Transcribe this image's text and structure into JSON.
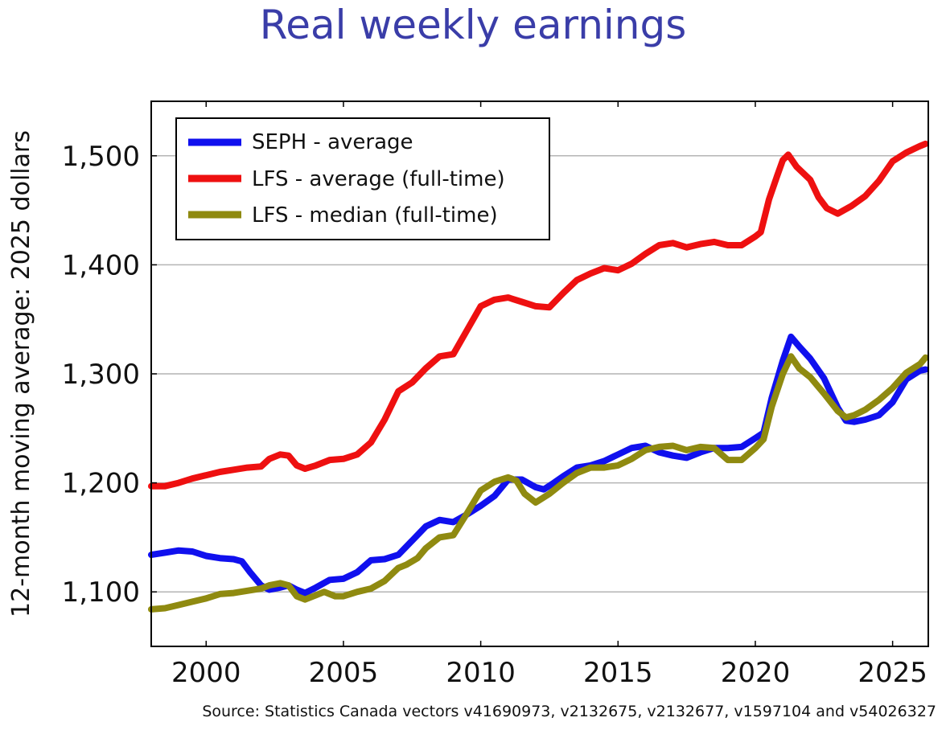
{
  "chart_data": {
    "type": "line",
    "title": "Real weekly earnings",
    "xlabel": "",
    "ylabel": "12-month moving average: 2025 dollars",
    "xlim": [
      1998,
      2026.3
    ],
    "ylim": [
      1050,
      1550
    ],
    "x_ticks": [
      2000,
      2005,
      2010,
      2015,
      2020,
      2025
    ],
    "x_tick_labels": [
      "2000",
      "2005",
      "2010",
      "2015",
      "2020",
      "2025"
    ],
    "y_ticks": [
      1100,
      1200,
      1300,
      1400,
      1500
    ],
    "y_tick_labels": [
      "1,100",
      "1,200",
      "1,300",
      "1,400",
      "1,500"
    ],
    "grid": "horizontal",
    "legend_position": "top-left",
    "source": "Source: Statistics Canada vectors v41690973, v2132675, v2132677, v1597104 and v54026327",
    "series": [
      {
        "name": "SEPH - average",
        "color": "#1010ee",
        "points": [
          [
            1998.0,
            1134
          ],
          [
            1998.5,
            1136
          ],
          [
            1999.0,
            1138
          ],
          [
            1999.5,
            1137
          ],
          [
            2000.0,
            1133
          ],
          [
            2000.5,
            1131
          ],
          [
            2001.0,
            1130
          ],
          [
            2001.3,
            1128
          ],
          [
            2001.6,
            1118
          ],
          [
            2002.0,
            1106
          ],
          [
            2002.3,
            1102
          ],
          [
            2002.7,
            1104
          ],
          [
            2003.0,
            1106
          ],
          [
            2003.3,
            1102
          ],
          [
            2003.6,
            1099
          ],
          [
            2004.0,
            1104
          ],
          [
            2004.5,
            1111
          ],
          [
            2005.0,
            1112
          ],
          [
            2005.5,
            1118
          ],
          [
            2006.0,
            1129
          ],
          [
            2006.5,
            1130
          ],
          [
            2007.0,
            1134
          ],
          [
            2007.5,
            1147
          ],
          [
            2008.0,
            1160
          ],
          [
            2008.5,
            1166
          ],
          [
            2009.0,
            1164
          ],
          [
            2009.5,
            1171
          ],
          [
            2010.0,
            1179
          ],
          [
            2010.5,
            1188
          ],
          [
            2011.0,
            1203
          ],
          [
            2011.5,
            1203
          ],
          [
            2012.0,
            1196
          ],
          [
            2012.3,
            1194
          ],
          [
            2012.6,
            1199
          ],
          [
            2013.0,
            1206
          ],
          [
            2013.5,
            1214
          ],
          [
            2014.0,
            1216
          ],
          [
            2014.5,
            1220
          ],
          [
            2015.0,
            1226
          ],
          [
            2015.5,
            1232
          ],
          [
            2016.0,
            1234
          ],
          [
            2016.5,
            1228
          ],
          [
            2017.0,
            1225
          ],
          [
            2017.5,
            1223
          ],
          [
            2018.0,
            1228
          ],
          [
            2018.5,
            1232
          ],
          [
            2019.0,
            1232
          ],
          [
            2019.5,
            1233
          ],
          [
            2020.0,
            1241
          ],
          [
            2020.3,
            1246
          ],
          [
            2020.6,
            1278
          ],
          [
            2021.0,
            1312
          ],
          [
            2021.3,
            1334
          ],
          [
            2021.6,
            1325
          ],
          [
            2022.0,
            1314
          ],
          [
            2022.5,
            1296
          ],
          [
            2023.0,
            1269
          ],
          [
            2023.3,
            1257
          ],
          [
            2023.6,
            1256
          ],
          [
            2024.0,
            1258
          ],
          [
            2024.5,
            1262
          ],
          [
            2025.0,
            1274
          ],
          [
            2025.5,
            1295
          ],
          [
            2026.0,
            1303
          ],
          [
            2026.2,
            1304
          ]
        ]
      },
      {
        "name": "LFS - average (full-time)",
        "color": "#ee1010",
        "points": [
          [
            1998.0,
            1197
          ],
          [
            1998.5,
            1197
          ],
          [
            1999.0,
            1200
          ],
          [
            1999.5,
            1204
          ],
          [
            2000.0,
            1207
          ],
          [
            2000.5,
            1210
          ],
          [
            2001.0,
            1212
          ],
          [
            2001.5,
            1214
          ],
          [
            2002.0,
            1215
          ],
          [
            2002.3,
            1222
          ],
          [
            2002.7,
            1226
          ],
          [
            2003.0,
            1225
          ],
          [
            2003.3,
            1216
          ],
          [
            2003.6,
            1213
          ],
          [
            2004.0,
            1216
          ],
          [
            2004.5,
            1221
          ],
          [
            2005.0,
            1222
          ],
          [
            2005.5,
            1226
          ],
          [
            2006.0,
            1237
          ],
          [
            2006.5,
            1258
          ],
          [
            2007.0,
            1284
          ],
          [
            2007.5,
            1292
          ],
          [
            2008.0,
            1305
          ],
          [
            2008.5,
            1316
          ],
          [
            2009.0,
            1318
          ],
          [
            2009.5,
            1340
          ],
          [
            2010.0,
            1362
          ],
          [
            2010.5,
            1368
          ],
          [
            2011.0,
            1370
          ],
          [
            2011.5,
            1366
          ],
          [
            2012.0,
            1362
          ],
          [
            2012.5,
            1361
          ],
          [
            2013.0,
            1374
          ],
          [
            2013.5,
            1386
          ],
          [
            2014.0,
            1392
          ],
          [
            2014.5,
            1397
          ],
          [
            2015.0,
            1395
          ],
          [
            2015.5,
            1401
          ],
          [
            2016.0,
            1410
          ],
          [
            2016.5,
            1418
          ],
          [
            2017.0,
            1420
          ],
          [
            2017.5,
            1416
          ],
          [
            2018.0,
            1419
          ],
          [
            2018.5,
            1421
          ],
          [
            2019.0,
            1418
          ],
          [
            2019.5,
            1418
          ],
          [
            2020.0,
            1426
          ],
          [
            2020.2,
            1430
          ],
          [
            2020.5,
            1460
          ],
          [
            2020.8,
            1482
          ],
          [
            2021.0,
            1496
          ],
          [
            2021.2,
            1501
          ],
          [
            2021.5,
            1490
          ],
          [
            2022.0,
            1478
          ],
          [
            2022.3,
            1462
          ],
          [
            2022.6,
            1452
          ],
          [
            2023.0,
            1447
          ],
          [
            2023.5,
            1454
          ],
          [
            2024.0,
            1463
          ],
          [
            2024.5,
            1477
          ],
          [
            2025.0,
            1495
          ],
          [
            2025.5,
            1503
          ],
          [
            2026.0,
            1509
          ],
          [
            2026.2,
            1511
          ]
        ]
      },
      {
        "name": "LFS - median (full-time)",
        "color": "#8f8a10",
        "points": [
          [
            1998.0,
            1084
          ],
          [
            1998.5,
            1085
          ],
          [
            1999.0,
            1088
          ],
          [
            1999.5,
            1091
          ],
          [
            2000.0,
            1094
          ],
          [
            2000.5,
            1098
          ],
          [
            2001.0,
            1099
          ],
          [
            2001.5,
            1101
          ],
          [
            2002.0,
            1103
          ],
          [
            2002.3,
            1106
          ],
          [
            2002.7,
            1108
          ],
          [
            2003.0,
            1106
          ],
          [
            2003.3,
            1096
          ],
          [
            2003.6,
            1093
          ],
          [
            2004.0,
            1097
          ],
          [
            2004.3,
            1100
          ],
          [
            2004.7,
            1096
          ],
          [
            2005.0,
            1096
          ],
          [
            2005.5,
            1100
          ],
          [
            2006.0,
            1103
          ],
          [
            2006.5,
            1110
          ],
          [
            2007.0,
            1122
          ],
          [
            2007.3,
            1125
          ],
          [
            2007.7,
            1131
          ],
          [
            2008.0,
            1140
          ],
          [
            2008.5,
            1150
          ],
          [
            2009.0,
            1152
          ],
          [
            2009.5,
            1172
          ],
          [
            2010.0,
            1193
          ],
          [
            2010.5,
            1201
          ],
          [
            2011.0,
            1205
          ],
          [
            2011.3,
            1202
          ],
          [
            2011.6,
            1190
          ],
          [
            2012.0,
            1182
          ],
          [
            2012.5,
            1190
          ],
          [
            2013.0,
            1200
          ],
          [
            2013.5,
            1209
          ],
          [
            2014.0,
            1214
          ],
          [
            2014.5,
            1214
          ],
          [
            2015.0,
            1216
          ],
          [
            2015.5,
            1222
          ],
          [
            2016.0,
            1230
          ],
          [
            2016.5,
            1233
          ],
          [
            2017.0,
            1234
          ],
          [
            2017.5,
            1230
          ],
          [
            2018.0,
            1233
          ],
          [
            2018.5,
            1232
          ],
          [
            2019.0,
            1221
          ],
          [
            2019.5,
            1221
          ],
          [
            2020.0,
            1232
          ],
          [
            2020.3,
            1240
          ],
          [
            2020.6,
            1270
          ],
          [
            2021.0,
            1300
          ],
          [
            2021.3,
            1316
          ],
          [
            2021.6,
            1305
          ],
          [
            2022.0,
            1297
          ],
          [
            2022.5,
            1282
          ],
          [
            2023.0,
            1266
          ],
          [
            2023.3,
            1260
          ],
          [
            2023.6,
            1262
          ],
          [
            2024.0,
            1267
          ],
          [
            2024.5,
            1276
          ],
          [
            2025.0,
            1287
          ],
          [
            2025.5,
            1301
          ],
          [
            2026.0,
            1309
          ],
          [
            2026.2,
            1315
          ]
        ]
      }
    ]
  }
}
